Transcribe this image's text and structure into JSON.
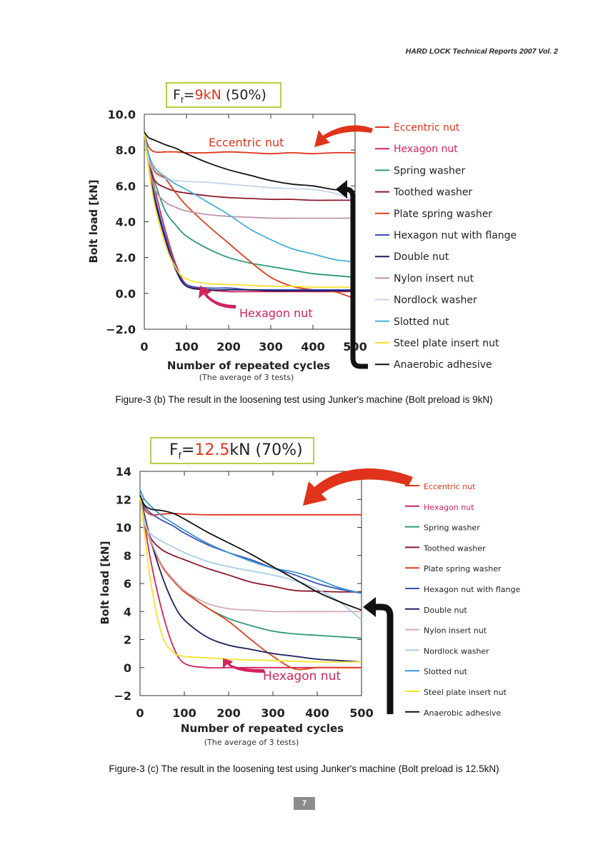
{
  "header": {
    "text": "HARD LOCK Technical Reports 2007 Vol. 2"
  },
  "figures": [
    {
      "ff_box": {
        "prefix": "F",
        "subscript": "f",
        "equals": "=",
        "value": "9kN",
        "percent": " (50%)"
      },
      "ylabel": "Bolt load [kN]",
      "xlabel": "Number of repeated cycles",
      "xnote": "(The average of 3 tests)",
      "annotations": {
        "eccentric": "Eccentric nut",
        "hexagon": "Hexagon nut"
      },
      "caption": "Figure-3 (b) The result in the loosening test using Junker's machine (Bolt preload is 9kN)"
    },
    {
      "ff_box": {
        "prefix": "F",
        "subscript": "f",
        "equals": "=",
        "value": "12.5",
        "percent": "kN (70%)"
      },
      "ylabel": "Bolt load [kN]",
      "xlabel": "Number of repeated cycles",
      "xnote": "(The average of 3 tests)",
      "annotations": {
        "eccentric": "",
        "hexagon": "Hexagon nut"
      },
      "caption": "Figure-3 (c) The result in the loosening test using Junker's machine (Bolt preload is 12.5kN)"
    }
  ],
  "page_number": "7",
  "chart_data": [
    {
      "type": "line",
      "ylabel": "Bolt load [kN]",
      "xlabel": "Number of repeated cycles",
      "xlim": [
        0,
        500
      ],
      "ylim": [
        -2.0,
        10.0
      ],
      "xticks": [
        "0",
        "100",
        "200",
        "300",
        "400",
        "500"
      ],
      "yticks": [
        "10.0",
        "8.0",
        "6.0",
        "4.0",
        "2.0",
        "0.0",
        "−2.0"
      ],
      "ytick_values": [
        10,
        8,
        6,
        4,
        2,
        0,
        -2
      ],
      "x": [
        0,
        10,
        25,
        50,
        75,
        100,
        150,
        200,
        250,
        300,
        350,
        400,
        450,
        500
      ],
      "series": [
        {
          "name": "Eccentric nut",
          "color": "#e0331b",
          "values": [
            9.0,
            8.2,
            7.9,
            7.9,
            7.9,
            7.85,
            7.85,
            7.9,
            7.85,
            7.8,
            7.85,
            7.8,
            7.85,
            7.85
          ]
        },
        {
          "name": "Hexagon nut",
          "color": "#d0245c",
          "values": [
            9.0,
            7.5,
            5.8,
            3.5,
            1.6,
            0.5,
            0.2,
            0.1,
            0.1,
            0.1,
            0.1,
            0.1,
            0.1,
            0.1
          ]
        },
        {
          "name": "Spring washer",
          "color": "#2e9a76",
          "values": [
            9.0,
            7.6,
            6.2,
            4.6,
            3.8,
            3.2,
            2.5,
            2.0,
            1.7,
            1.5,
            1.3,
            1.1,
            1.0,
            0.9
          ]
        },
        {
          "name": "Toothed washer",
          "color": "#8b1a2b",
          "values": [
            9.0,
            7.4,
            6.3,
            5.9,
            5.7,
            5.6,
            5.45,
            5.35,
            5.3,
            5.25,
            5.25,
            5.2,
            5.2,
            5.2
          ]
        },
        {
          "name": "Plate spring washer",
          "color": "#e0401c",
          "values": [
            9.0,
            7.6,
            6.8,
            6.4,
            5.6,
            4.9,
            3.8,
            2.8,
            1.8,
            0.9,
            0.4,
            0.2,
            0.1,
            -0.3
          ]
        },
        {
          "name": "Hexagon nut with flange",
          "color": "#3b4fb8",
          "values": [
            9.0,
            7.3,
            5.4,
            3.2,
            1.4,
            0.5,
            0.3,
            0.3,
            0.2,
            0.2,
            0.2,
            0.2,
            0.2,
            0.2
          ]
        },
        {
          "name": "Double nut",
          "color": "#1a1f5e",
          "values": [
            9.0,
            7.2,
            5.2,
            3.0,
            1.3,
            0.4,
            0.2,
            0.2,
            0.2,
            0.15,
            0.15,
            0.15,
            0.15,
            0.15
          ]
        },
        {
          "name": "Nylon insert nut",
          "color": "#bf93a8",
          "values": [
            9.0,
            7.2,
            5.8,
            5.1,
            4.8,
            4.6,
            4.4,
            4.3,
            4.25,
            4.2,
            4.2,
            4.2,
            4.2,
            4.2
          ]
        },
        {
          "name": "Nordlock washer",
          "color": "#c4d4ec",
          "values": [
            9.0,
            7.5,
            6.7,
            6.4,
            6.3,
            6.25,
            6.2,
            6.1,
            6.0,
            5.9,
            5.85,
            5.8,
            5.6,
            5.2
          ]
        },
        {
          "name": "Slotted nut",
          "color": "#46aede",
          "values": [
            9.0,
            7.8,
            7.0,
            6.5,
            6.1,
            5.8,
            5.1,
            4.4,
            3.6,
            3.0,
            2.5,
            2.2,
            1.9,
            1.75
          ]
        },
        {
          "name": "Steel plate insert nut",
          "color": "#f2e32e",
          "values": [
            9.0,
            7.0,
            4.9,
            2.7,
            1.4,
            0.8,
            0.55,
            0.5,
            0.45,
            0.4,
            0.4,
            0.35,
            0.35,
            0.35
          ]
        },
        {
          "name": "Anaerobic adhesive",
          "color": "#111111",
          "values": [
            9.0,
            8.7,
            8.55,
            8.3,
            8.1,
            7.8,
            7.3,
            6.9,
            6.6,
            6.3,
            6.1,
            6.0,
            5.8,
            5.7
          ]
        }
      ]
    },
    {
      "type": "line",
      "ylabel": "Bolt load [kN]",
      "xlabel": "Number of repeated cycles",
      "xlim": [
        0,
        500
      ],
      "ylim": [
        -2,
        14
      ],
      "xticks": [
        "0",
        "100",
        "200",
        "300",
        "400",
        "500"
      ],
      "yticks": [
        "14",
        "12",
        "10",
        "8",
        "6",
        "4",
        "2",
        "0",
        "−2"
      ],
      "ytick_values": [
        14,
        12,
        10,
        8,
        6,
        4,
        2,
        0,
        -2
      ],
      "x": [
        0,
        10,
        25,
        50,
        75,
        100,
        150,
        200,
        250,
        300,
        350,
        400,
        450,
        500
      ],
      "series": [
        {
          "name": "Eccentric nut",
          "color": "#e0331b",
          "values": [
            12.3,
            11.3,
            10.9,
            10.95,
            11.0,
            10.95,
            10.9,
            10.9,
            10.9,
            10.9,
            10.9,
            10.9,
            10.9,
            10.9
          ]
        },
        {
          "name": "Hexagon nut",
          "color": "#d0245c",
          "values": [
            12.3,
            10.3,
            7.5,
            4.0,
            1.5,
            0.3,
            0.0,
            0.0,
            0.0,
            0.0,
            0.0,
            0.0,
            0.0,
            0.0
          ]
        },
        {
          "name": "Spring washer",
          "color": "#2e9a76",
          "values": [
            12.3,
            10.6,
            9.0,
            7.3,
            6.3,
            5.5,
            4.3,
            3.5,
            3.0,
            2.6,
            2.4,
            2.3,
            2.2,
            2.1
          ]
        },
        {
          "name": "Toothed washer",
          "color": "#8b1a2b",
          "values": [
            12.3,
            10.6,
            9.2,
            8.4,
            8.0,
            7.7,
            7.1,
            6.6,
            6.1,
            5.8,
            5.5,
            5.45,
            5.4,
            5.4
          ]
        },
        {
          "name": "Plate spring washer",
          "color": "#e0401c",
          "values": [
            12.3,
            10.5,
            8.9,
            7.2,
            6.2,
            5.4,
            4.3,
            3.3,
            2.0,
            0.8,
            -0.1,
            0.0,
            0.0,
            0.0
          ]
        },
        {
          "name": "Hexagon nut with flange",
          "color": "#3b4fb8",
          "values": [
            12.3,
            11.5,
            11.0,
            10.5,
            10.1,
            9.6,
            8.8,
            8.2,
            7.7,
            7.1,
            6.6,
            6.0,
            5.6,
            5.3
          ]
        },
        {
          "name": "Double nut",
          "color": "#1a1f5e",
          "values": [
            12.3,
            10.9,
            9.0,
            6.5,
            4.6,
            3.4,
            2.2,
            1.6,
            1.3,
            1.0,
            0.8,
            0.6,
            0.5,
            0.4
          ]
        },
        {
          "name": "Nylon insert nut",
          "color": "#d8a9bc",
          "values": [
            12.3,
            10.6,
            9.0,
            7.3,
            6.3,
            5.5,
            4.6,
            4.2,
            4.1,
            4.0,
            4.0,
            4.0,
            4.0,
            4.0
          ]
        },
        {
          "name": "Nordlock washer",
          "color": "#a9cde9",
          "values": [
            12.3,
            10.3,
            9.5,
            9.0,
            8.6,
            8.2,
            7.6,
            7.2,
            6.9,
            6.6,
            6.2,
            5.6,
            4.7,
            3.4
          ]
        },
        {
          "name": "Slotted nut",
          "color": "#3a93d1",
          "values": [
            12.7,
            12.0,
            11.5,
            10.8,
            10.3,
            9.8,
            8.9,
            8.2,
            7.6,
            7.1,
            6.8,
            6.3,
            5.7,
            5.3
          ]
        },
        {
          "name": "Steel plate insert nut",
          "color": "#f2e32e",
          "values": [
            12.3,
            9.6,
            5.9,
            2.3,
            1.1,
            0.8,
            0.7,
            0.6,
            0.55,
            0.5,
            0.45,
            0.4,
            0.4,
            0.4
          ]
        },
        {
          "name": "Anaerobic adhesive",
          "color": "#111111",
          "values": [
            12.3,
            11.6,
            11.3,
            11.2,
            11.0,
            10.6,
            9.7,
            8.9,
            8.1,
            7.2,
            6.3,
            5.4,
            4.7,
            4.1
          ]
        }
      ]
    }
  ]
}
